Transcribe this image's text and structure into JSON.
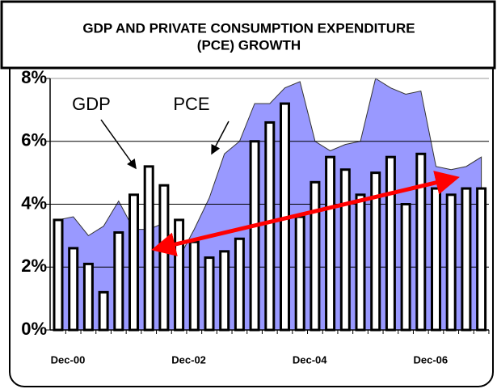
{
  "chart_data": {
    "type": "bar-area",
    "title": "GDP AND PRIVATE CONSUMPTION EXPENDITURE",
    "subtitle": "(PCE) GROWTH",
    "annotations": [
      "GDP",
      "PCE"
    ],
    "categories": [
      "Dec-00",
      null,
      null,
      null,
      null,
      null,
      null,
      null,
      "Dec-02",
      null,
      null,
      null,
      null,
      null,
      null,
      null,
      "Dec-04",
      null,
      null,
      null,
      null,
      null,
      null,
      null,
      "Dec-06",
      null,
      null,
      null,
      null
    ],
    "series": [
      {
        "name": "GDP",
        "color": "#ffffff",
        "values": [
          3.5,
          2.6,
          2.1,
          1.2,
          3.1,
          4.3,
          5.2,
          4.6,
          3.5,
          2.8,
          2.3,
          2.5,
          2.9,
          6.0,
          6.6,
          7.2,
          3.6,
          4.7,
          5.5,
          5.1,
          4.3,
          5.0,
          5.5,
          4.0,
          5.6,
          4.5,
          4.3,
          4.5,
          4.5
        ]
      },
      {
        "name": "PCE",
        "color": "#9999ff",
        "values": [
          3.5,
          3.6,
          3.0,
          3.3,
          4.1,
          3.2,
          3.2,
          3.4,
          2.3,
          3.2,
          4.2,
          5.6,
          6.0,
          7.2,
          7.2,
          7.7,
          7.9,
          6.0,
          5.7,
          5.9,
          6.0,
          8.0,
          7.7,
          7.5,
          7.6,
          5.2,
          5.1,
          5.2,
          5.5
        ]
      }
    ],
    "ylim": [
      0,
      8
    ],
    "yticks": [
      {
        "value": 0,
        "label": "0%"
      },
      {
        "value": 2,
        "label": "2%"
      },
      {
        "value": 4,
        "label": "4%"
      },
      {
        "value": 6,
        "label": "6%"
      },
      {
        "value": 8,
        "label": "8%"
      }
    ],
    "grid": true
  }
}
